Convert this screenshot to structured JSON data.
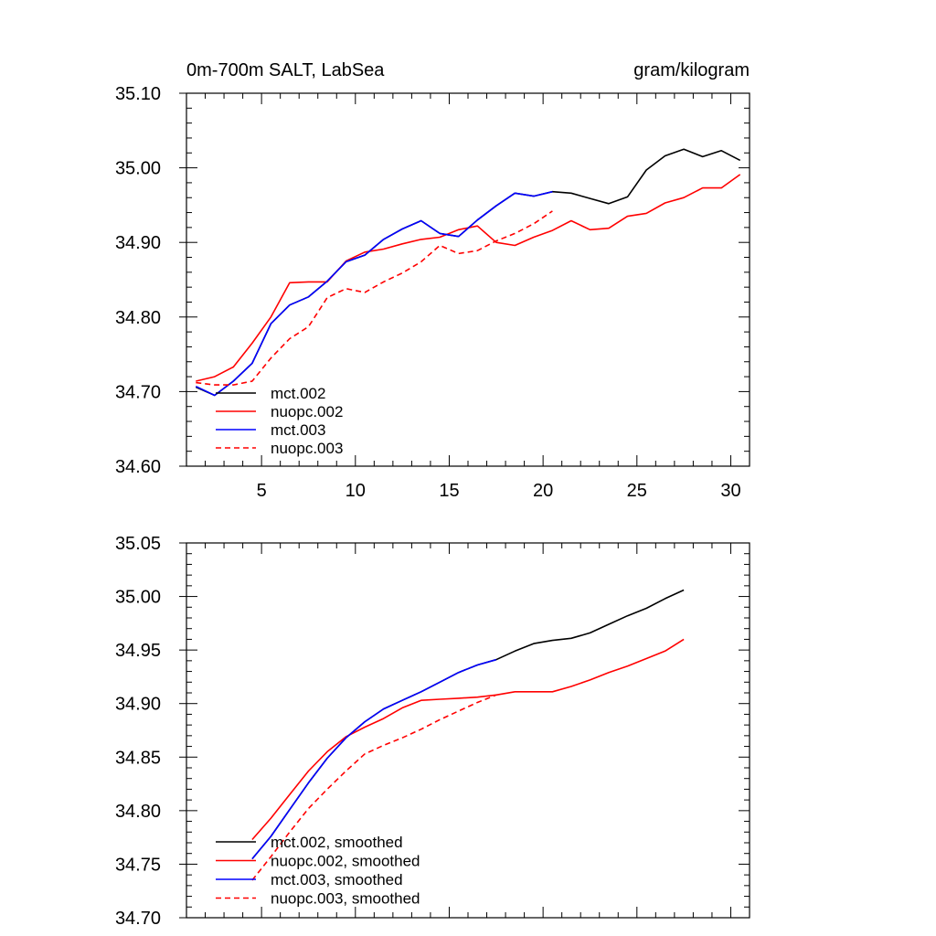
{
  "chart_data": [
    {
      "type": "line",
      "title": "0m-700m SALT, LabSea",
      "units": "gram/kilogram",
      "xlabel": "",
      "ylabel": "",
      "xlim": [
        1,
        31
      ],
      "ylim": [
        34.6,
        35.1
      ],
      "xticks": [
        "5",
        "10",
        "15",
        "20",
        "25",
        "30"
      ],
      "yticks": [
        "34.60",
        "34.70",
        "34.80",
        "34.90",
        "35.00",
        "35.10"
      ],
      "legend_position": "bottom-left",
      "grid": false,
      "series": [
        {
          "name": "mct.002",
          "color": "#000000",
          "dash": "solid",
          "x": [
            1.5,
            2.5,
            3.5,
            4.5,
            5.5,
            6.5,
            7.5,
            8.5,
            9.5,
            10.5,
            11.5,
            12.5,
            13.5,
            14.5,
            15.5,
            16.5,
            17.5,
            18.5,
            19.5,
            20.5,
            21.5,
            22.5,
            23.5,
            24.5,
            25.5,
            26.5,
            27.5,
            28.5,
            29.5,
            30.5
          ],
          "values": [
            34.706,
            34.695,
            34.714,
            34.738,
            34.791,
            34.816,
            34.827,
            34.848,
            34.874,
            34.883,
            34.904,
            34.918,
            34.929,
            34.912,
            34.908,
            34.93,
            34.949,
            34.966,
            34.962,
            34.968,
            34.966,
            34.959,
            34.952,
            34.961,
            34.997,
            35.016,
            35.025,
            35.015,
            35.023,
            35.01
          ]
        },
        {
          "name": "nuopc.002",
          "color": "#ff0000",
          "dash": "solid",
          "x": [
            1.5,
            2.5,
            3.5,
            4.5,
            5.5,
            6.5,
            7.5,
            8.5,
            9.5,
            10.5,
            11.5,
            12.5,
            13.5,
            14.5,
            15.5,
            16.5,
            17.5,
            18.5,
            19.5,
            20.5,
            21.5,
            22.5,
            23.5,
            24.5,
            25.5,
            26.5,
            27.5,
            28.5,
            29.5,
            30.5
          ],
          "values": [
            34.714,
            34.72,
            34.733,
            34.765,
            34.8,
            34.846,
            34.847,
            34.847,
            34.875,
            34.887,
            34.891,
            34.898,
            34.904,
            34.907,
            34.917,
            34.922,
            34.9,
            34.896,
            34.907,
            34.916,
            34.929,
            34.917,
            34.919,
            34.935,
            34.939,
            34.953,
            34.96,
            34.973,
            34.973,
            34.991
          ]
        },
        {
          "name": "mct.003",
          "color": "#0000ff",
          "dash": "solid",
          "x": [
            1.5,
            2.5,
            3.5,
            4.5,
            5.5,
            6.5,
            7.5,
            8.5,
            9.5,
            10.5,
            11.5,
            12.5,
            13.5,
            14.5,
            15.5,
            16.5,
            17.5,
            18.5,
            19.5,
            20.5
          ],
          "values": [
            34.707,
            34.695,
            34.714,
            34.738,
            34.791,
            34.816,
            34.827,
            34.848,
            34.874,
            34.883,
            34.904,
            34.918,
            34.929,
            34.912,
            34.908,
            34.93,
            34.949,
            34.966,
            34.962,
            34.968
          ]
        },
        {
          "name": "nuopc.003",
          "color": "#ff0000",
          "dash": "dashed",
          "x": [
            1.5,
            2.5,
            3.5,
            4.5,
            5.5,
            6.5,
            7.5,
            8.5,
            9.5,
            10.5,
            11.5,
            12.5,
            13.5,
            14.5,
            15.5,
            16.5,
            17.5,
            18.5,
            19.5,
            20.5
          ],
          "values": [
            34.712,
            34.709,
            34.709,
            34.714,
            34.745,
            34.771,
            34.787,
            34.826,
            34.838,
            34.833,
            34.847,
            34.859,
            34.874,
            34.896,
            34.885,
            34.889,
            34.902,
            34.912,
            34.925,
            34.942
          ]
        }
      ]
    },
    {
      "type": "line",
      "title": "",
      "xlabel": "",
      "ylabel": "",
      "xlim": [
        1,
        31
      ],
      "ylim": [
        34.7,
        35.05
      ],
      "xticks": [],
      "yticks": [
        "34.70",
        "34.75",
        "34.80",
        "34.85",
        "34.90",
        "34.95",
        "35.00",
        "35.05"
      ],
      "legend_position": "bottom-left",
      "grid": false,
      "series": [
        {
          "name": "mct.002, smoothed",
          "color": "#000000",
          "dash": "solid",
          "x": [
            4.5,
            5.5,
            6.5,
            7.5,
            8.5,
            9.5,
            10.5,
            11.5,
            12.5,
            13.5,
            14.5,
            15.5,
            16.5,
            17.5,
            18.5,
            19.5,
            20.5,
            21.5,
            22.5,
            23.5,
            24.5,
            25.5,
            26.5,
            27.5
          ],
          "values": [
            34.755,
            34.776,
            34.801,
            34.826,
            34.849,
            34.868,
            34.883,
            34.895,
            34.903,
            34.911,
            34.92,
            34.929,
            34.936,
            34.941,
            34.949,
            34.956,
            34.959,
            34.961,
            34.966,
            34.974,
            34.982,
            34.989,
            34.998,
            35.006
          ]
        },
        {
          "name": "nuopc.002, smoothed",
          "color": "#ff0000",
          "dash": "solid",
          "x": [
            4.5,
            5.5,
            6.5,
            7.5,
            8.5,
            9.5,
            10.5,
            11.5,
            12.5,
            13.5,
            14.5,
            15.5,
            16.5,
            17.5,
            18.5,
            19.5,
            20.5,
            21.5,
            22.5,
            23.5,
            24.5,
            25.5,
            26.5,
            27.5
          ],
          "values": [
            34.773,
            34.793,
            34.815,
            34.837,
            34.855,
            34.869,
            34.878,
            34.886,
            34.896,
            34.903,
            34.904,
            34.905,
            34.906,
            34.908,
            34.911,
            34.911,
            34.911,
            34.916,
            34.922,
            34.929,
            34.935,
            34.942,
            34.949,
            34.96
          ]
        },
        {
          "name": "mct.003, smoothed",
          "color": "#0000ff",
          "dash": "solid",
          "x": [
            4.5,
            5.5,
            6.5,
            7.5,
            8.5,
            9.5,
            10.5,
            11.5,
            12.5,
            13.5,
            14.5,
            15.5,
            16.5,
            17.5
          ],
          "values": [
            34.755,
            34.776,
            34.801,
            34.826,
            34.849,
            34.868,
            34.883,
            34.895,
            34.903,
            34.911,
            34.92,
            34.929,
            34.936,
            34.941
          ]
        },
        {
          "name": "nuopc.003, smoothed",
          "color": "#ff0000",
          "dash": "dashed",
          "x": [
            4.5,
            5.5,
            6.5,
            7.5,
            8.5,
            9.5,
            10.5,
            11.5,
            12.5,
            13.5,
            14.5,
            15.5,
            16.5,
            17.5
          ],
          "values": [
            34.735,
            34.757,
            34.78,
            34.802,
            34.82,
            34.837,
            34.853,
            34.861,
            34.868,
            34.876,
            34.885,
            34.893,
            34.901,
            34.908
          ]
        }
      ]
    }
  ]
}
